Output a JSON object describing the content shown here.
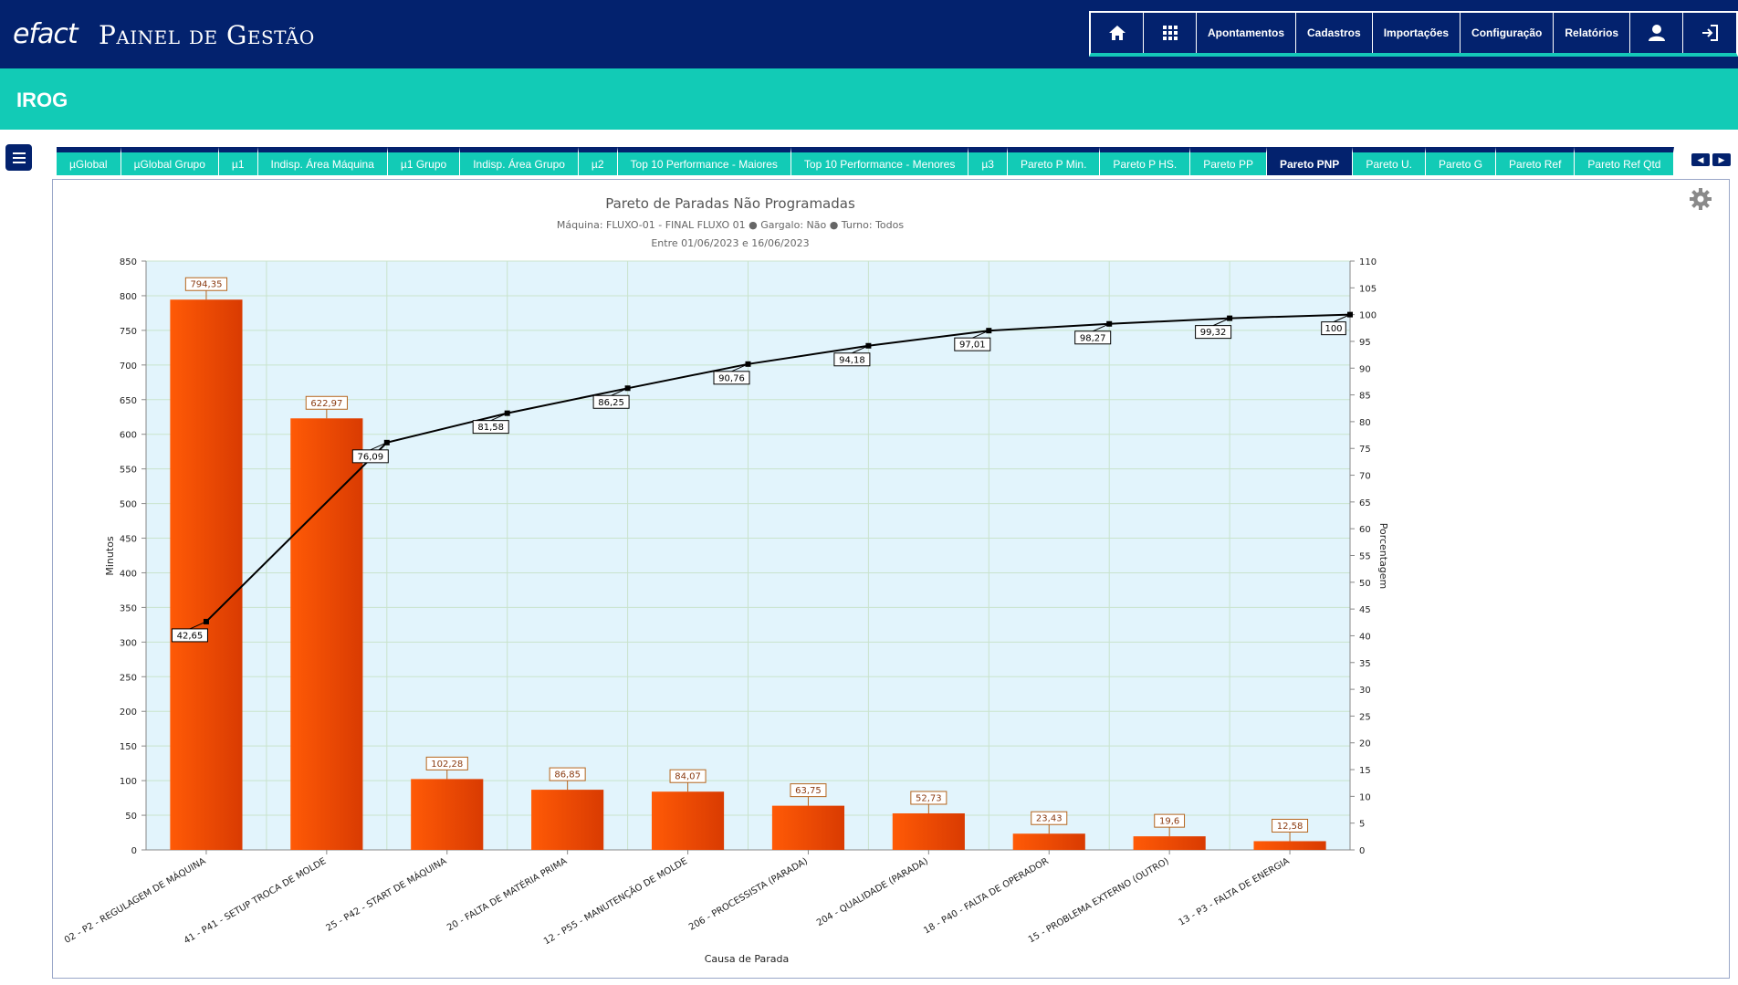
{
  "header": {
    "logo_text": "efact",
    "app_title": "Painel de Gestão",
    "nav": [
      "Apontamentos",
      "Cadastros",
      "Importações",
      "Configuração",
      "Relatórios"
    ],
    "icons": [
      "home-icon",
      "apps-grid-icon",
      "user-icon",
      "logout-icon"
    ]
  },
  "page": {
    "title": "IROG"
  },
  "tabs": {
    "items": [
      "µGlobal",
      "µGlobal Grupo",
      "µ1",
      "Indisp. Área Máquina",
      "µ1 Grupo",
      "Indisp. Área Grupo",
      "µ2",
      "Top 10 Performance - Maiores",
      "Top 10 Performance - Menores",
      "µ3",
      "Pareto P Min.",
      "Pareto P HS.",
      "Pareto PP",
      "Pareto PNP",
      "Pareto U.",
      "Pareto G",
      "Pareto Ref",
      "Pareto Ref Qtd"
    ],
    "active": "Pareto PNP"
  },
  "colors": {
    "navy": "#03226e",
    "teal": "#12cbb6",
    "bar": "#f04a06",
    "plot_bg": "#e2f4fc"
  },
  "chart_data": {
    "type": "bar",
    "title": "Pareto de Paradas Não Programadas",
    "subtitle": "Máquina: FLUXO-01 - FINAL FLUXO 01  ●  Gargalo: Não  ●  Turno: Todos",
    "subtitle2": "Entre 01/06/2023 e 16/06/2023",
    "xlabel": "Causa de Parada",
    "ylabel": "Minutos",
    "y2label": "Porcentagem",
    "ylim": [
      0,
      850
    ],
    "y2lim": [
      0,
      110
    ],
    "categories": [
      "02 - P2 - REGULAGEM DE MÁQUINA",
      "41 - P41 - SETUP TROCA DE MOLDE",
      "25 - P42 - START DE MÁQUINA",
      "20 - FALTA DE MATÉRIA PRIMA",
      "12 - P55 - MANUTENÇÃO DE MOLDE",
      "206 - PROCESSISTA (PARADA)",
      "204 - QUALIDADE (PARADA)",
      "18 - P40 - FALTA DE OPERADOR",
      "15 - PROBLEMA EXTERNO (OUTRO)",
      "13 - P3 - FALTA DE ENERGIA"
    ],
    "series": [
      {
        "type": "bar",
        "values": [
          794.35,
          622.97,
          102.28,
          86.85,
          84.07,
          63.75,
          52.73,
          23.43,
          19.6,
          12.58
        ],
        "labels": [
          "794,35",
          "622,97",
          "102,28",
          "86,85",
          "84,07",
          "63,75",
          "52,73",
          "23,43",
          "19,6",
          "12,58"
        ]
      },
      {
        "type": "line",
        "axis": "right",
        "values": [
          42.65,
          76.09,
          81.58,
          86.25,
          90.76,
          94.18,
          97.01,
          98.27,
          99.32,
          100
        ],
        "labels": [
          "42,65",
          "76,09",
          "81,58",
          "86,25",
          "90,76",
          "94,18",
          "97,01",
          "98,27",
          "99,32",
          "100"
        ]
      }
    ],
    "grid": true
  }
}
